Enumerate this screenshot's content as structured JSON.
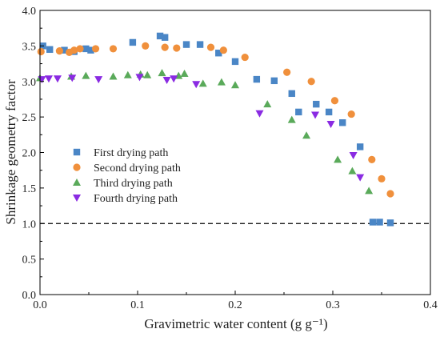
{
  "chart_data": {
    "type": "scatter",
    "xlabel": "Gravimetric water content (g g⁻¹)",
    "ylabel": "Shrinkage geometry factor",
    "xlim": [
      0.0,
      0.4
    ],
    "ylim": [
      0.0,
      4.0
    ],
    "xticks": [
      "0.0",
      "0.1",
      "0.2",
      "0.3",
      "0.4"
    ],
    "yticks": [
      "0.0",
      "0.5",
      "1.0",
      "1.5",
      "2.0",
      "2.5",
      "3.0",
      "3.5",
      "4.0"
    ],
    "grid": false,
    "legend_position": "left-middle",
    "reference_line": {
      "y": 1.0,
      "style": "dashed",
      "color": "#000000"
    },
    "series": [
      {
        "name": "First drying path",
        "marker": "square",
        "color": "#4a86c6",
        "points": [
          [
            0.003,
            3.5
          ],
          [
            0.01,
            3.45
          ],
          [
            0.025,
            3.44
          ],
          [
            0.035,
            3.42
          ],
          [
            0.047,
            3.46
          ],
          [
            0.052,
            3.44
          ],
          [
            0.095,
            3.55
          ],
          [
            0.123,
            3.64
          ],
          [
            0.128,
            3.62
          ],
          [
            0.15,
            3.52
          ],
          [
            0.164,
            3.52
          ],
          [
            0.183,
            3.4
          ],
          [
            0.2,
            3.28
          ],
          [
            0.222,
            3.03
          ],
          [
            0.24,
            3.01
          ],
          [
            0.258,
            2.83
          ],
          [
            0.265,
            2.57
          ],
          [
            0.283,
            2.68
          ],
          [
            0.296,
            2.57
          ],
          [
            0.31,
            2.42
          ],
          [
            0.328,
            2.08
          ],
          [
            0.341,
            1.02
          ],
          [
            0.348,
            1.02
          ],
          [
            0.359,
            1.01
          ]
        ]
      },
      {
        "name": "Second drying path",
        "marker": "circle",
        "color": "#f0903c",
        "points": [
          [
            0.001,
            3.42
          ],
          [
            0.02,
            3.43
          ],
          [
            0.03,
            3.41
          ],
          [
            0.035,
            3.44
          ],
          [
            0.041,
            3.46
          ],
          [
            0.057,
            3.46
          ],
          [
            0.075,
            3.46
          ],
          [
            0.108,
            3.5
          ],
          [
            0.128,
            3.48
          ],
          [
            0.14,
            3.47
          ],
          [
            0.175,
            3.48
          ],
          [
            0.188,
            3.44
          ],
          [
            0.21,
            3.34
          ],
          [
            0.253,
            3.13
          ],
          [
            0.278,
            3.0
          ],
          [
            0.302,
            2.73
          ],
          [
            0.319,
            2.54
          ],
          [
            0.34,
            1.9
          ],
          [
            0.35,
            1.63
          ],
          [
            0.359,
            1.42
          ]
        ]
      },
      {
        "name": "Third drying path",
        "marker": "triangle-up",
        "color": "#5aaa5a",
        "points": [
          [
            0.0,
            3.05
          ],
          [
            0.032,
            3.07
          ],
          [
            0.047,
            3.08
          ],
          [
            0.075,
            3.07
          ],
          [
            0.09,
            3.09
          ],
          [
            0.103,
            3.1
          ],
          [
            0.11,
            3.09
          ],
          [
            0.125,
            3.12
          ],
          [
            0.142,
            3.08
          ],
          [
            0.148,
            3.11
          ],
          [
            0.167,
            2.97
          ],
          [
            0.186,
            2.99
          ],
          [
            0.2,
            2.95
          ],
          [
            0.233,
            2.68
          ],
          [
            0.258,
            2.46
          ],
          [
            0.273,
            2.24
          ],
          [
            0.305,
            1.9
          ],
          [
            0.32,
            1.74
          ],
          [
            0.337,
            1.46
          ]
        ]
      },
      {
        "name": "Fourth drying path",
        "marker": "triangle-down",
        "color": "#8a2be2",
        "points": [
          [
            0.002,
            3.03
          ],
          [
            0.009,
            3.04
          ],
          [
            0.018,
            3.04
          ],
          [
            0.033,
            3.05
          ],
          [
            0.06,
            3.03
          ],
          [
            0.102,
            3.06
          ],
          [
            0.13,
            3.02
          ],
          [
            0.137,
            3.04
          ],
          [
            0.16,
            2.96
          ],
          [
            0.225,
            2.55
          ],
          [
            0.282,
            2.53
          ],
          [
            0.298,
            2.4
          ],
          [
            0.321,
            1.96
          ],
          [
            0.328,
            1.65
          ]
        ]
      }
    ]
  }
}
